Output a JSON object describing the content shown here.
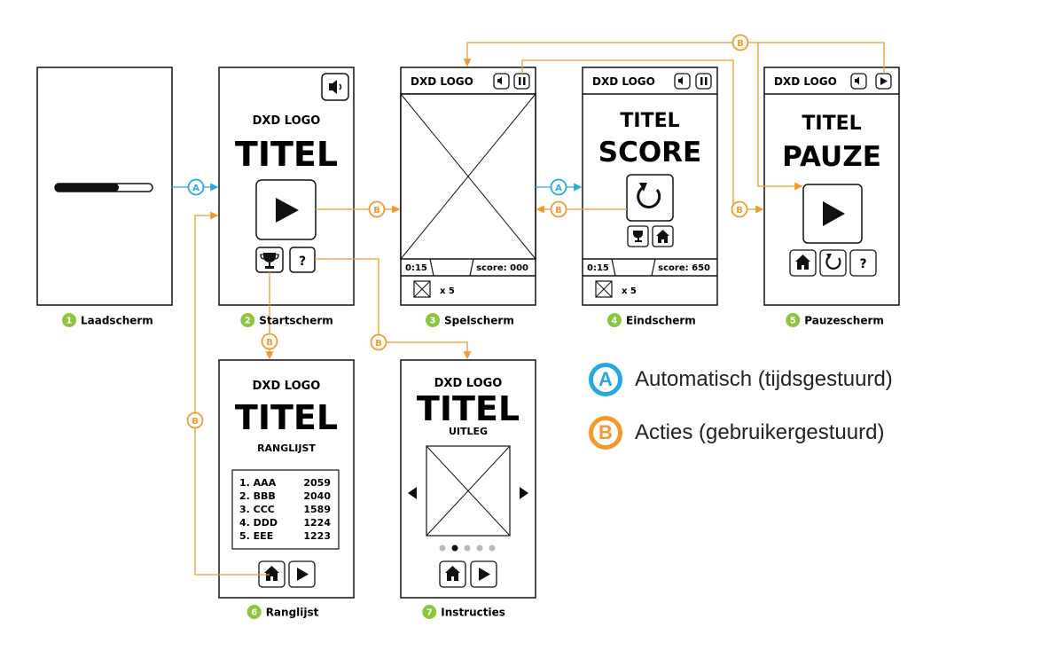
{
  "colors": {
    "auto": "#29a8e0",
    "action": "#f29a2e",
    "step": "#8cc63f",
    "ink": "#111111"
  },
  "logo": "DXD LOGO",
  "title": "TITEL",
  "badges": {
    "auto": "A",
    "action": "B"
  },
  "screens": [
    {
      "number": "1",
      "label": "Laadscherm"
    },
    {
      "number": "2",
      "label": "Startscherm"
    },
    {
      "number": "3",
      "label": "Spelscherm"
    },
    {
      "number": "4",
      "label": "Eindscherm"
    },
    {
      "number": "5",
      "label": "Pauzescherm"
    },
    {
      "number": "6",
      "label": "Ranglijst"
    },
    {
      "number": "7",
      "label": "Instructies"
    }
  ],
  "game": {
    "time": "0:15",
    "score": "score: 000",
    "lives": "x 5"
  },
  "end": {
    "heading": "SCORE",
    "time": "0:15",
    "score": "score: 650",
    "lives": "x 5"
  },
  "pause": {
    "heading": "PAUZE"
  },
  "leaderboard": {
    "heading": "RANGLIJST",
    "rows": [
      {
        "name": "1. AAA",
        "score": "2059"
      },
      {
        "name": "2. BBB",
        "score": "2040"
      },
      {
        "name": "3. CCC",
        "score": "1589"
      },
      {
        "name": "4. DDD",
        "score": "1224"
      },
      {
        "name": "5. EEE",
        "score": "1223"
      }
    ]
  },
  "instructions": {
    "heading": "UITLEG",
    "help": "?"
  },
  "legend": {
    "auto": {
      "badge": "A",
      "label": "Automatisch (tijdsgestuurd)"
    },
    "action": {
      "badge": "B",
      "label": "Acties (gebruikergestuurd)"
    }
  }
}
